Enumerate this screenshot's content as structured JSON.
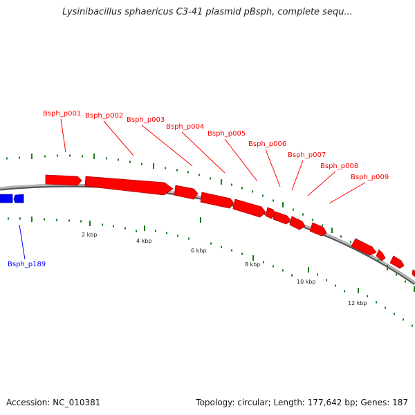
{
  "title": "Lysinibacillus sphaericus C3-41 plasmid pBsph, complete sequ...",
  "footer": {
    "accession": "Accession: NC_010381",
    "summary": "Topology: circular; Length: 177,642 bp; Genes: 187"
  },
  "colors": {
    "forward_gene": "#ff0000",
    "reverse_gene": "#0000ff",
    "backbone": "#888888",
    "ticks": "#1a7a1a"
  },
  "genes": [
    {
      "name": "Bsph_p001",
      "strand": "+"
    },
    {
      "name": "Bsph_p002",
      "strand": "+"
    },
    {
      "name": "Bsph_p003",
      "strand": "+"
    },
    {
      "name": "Bsph_p004",
      "strand": "+"
    },
    {
      "name": "Bsph_p005",
      "strand": "+"
    },
    {
      "name": "Bsph_p006",
      "strand": "+"
    },
    {
      "name": "Bsph_p007",
      "strand": "+"
    },
    {
      "name": "Bsph_p008",
      "strand": "+"
    },
    {
      "name": "Bsph_p009",
      "strand": "+"
    },
    {
      "name": "Bsph_p189",
      "strand": "-"
    }
  ],
  "scale_labels": [
    "2 kbp",
    "4 kbp",
    "6 kbp",
    "8 kbp",
    "10 kbp",
    "12 kbp"
  ]
}
